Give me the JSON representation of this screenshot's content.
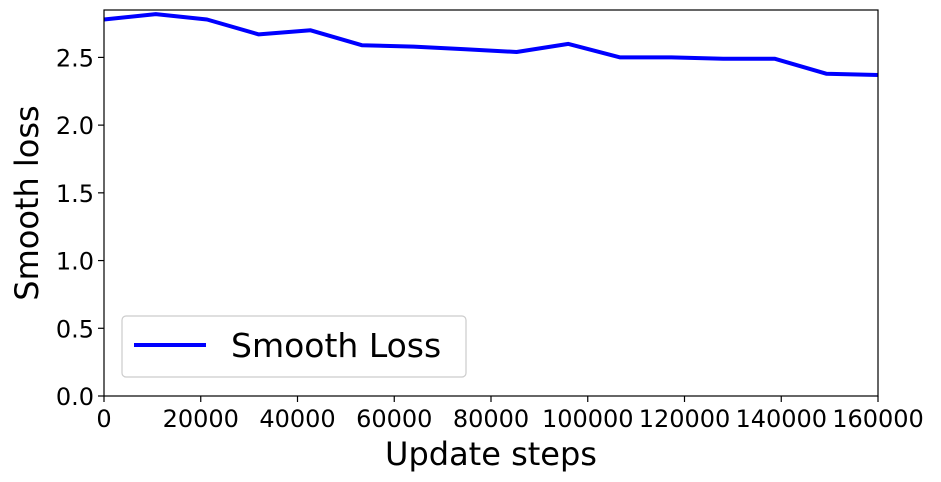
{
  "chart_data": {
    "type": "line",
    "xlabel": "Update steps",
    "ylabel": "Smooth loss",
    "xlim": [
      0,
      160000
    ],
    "ylim": [
      0,
      2.85
    ],
    "xticks": [
      0,
      20000,
      40000,
      60000,
      80000,
      100000,
      120000,
      140000,
      160000
    ],
    "xtick_labels": [
      "0",
      "20000",
      "40000",
      "60000",
      "80000",
      "100000",
      "120000",
      "140000",
      "160000"
    ],
    "yticks": [
      0.0,
      0.5,
      1.0,
      1.5,
      2.0,
      2.5
    ],
    "ytick_labels": [
      "0.0",
      "0.5",
      "1.0",
      "1.5",
      "2.0",
      "2.5"
    ],
    "grid": false,
    "legend": "lower-left",
    "series": [
      {
        "name": "Smooth Loss",
        "color": "#0000ff",
        "x": [
          0,
          10700,
          21300,
          32000,
          42700,
          53300,
          64000,
          74700,
          85300,
          96000,
          106700,
          117300,
          128000,
          138700,
          149300,
          160000
        ],
        "y": [
          2.78,
          2.82,
          2.78,
          2.67,
          2.7,
          2.59,
          2.58,
          2.56,
          2.54,
          2.6,
          2.5,
          2.5,
          2.49,
          2.49,
          2.38,
          2.37
        ]
      }
    ]
  }
}
